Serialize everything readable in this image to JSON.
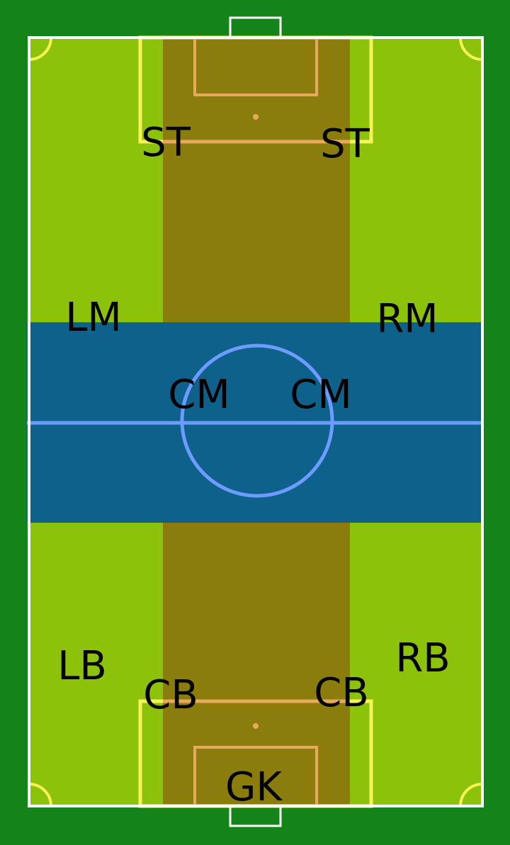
{
  "colors": {
    "outer_background": "#14841a",
    "pitch_grass": "#8dc20b",
    "center_channel": "#8b7d0b",
    "midfield_band": "#0d618b",
    "boundary_lines": "#ffffff",
    "penalty_box_lines": "#f7f25a",
    "goal_area_lines": "#e8a85e",
    "midfield_lines": "#6d9bff",
    "label_text": "#000000"
  },
  "positions": {
    "st_left": "ST",
    "st_right": "ST",
    "lm": "LM",
    "rm": "RM",
    "cm_left": "CM",
    "cm_right": "CM",
    "lb": "LB",
    "rb": "RB",
    "cb_left": "CB",
    "cb_right": "CB",
    "gk": "GK"
  }
}
